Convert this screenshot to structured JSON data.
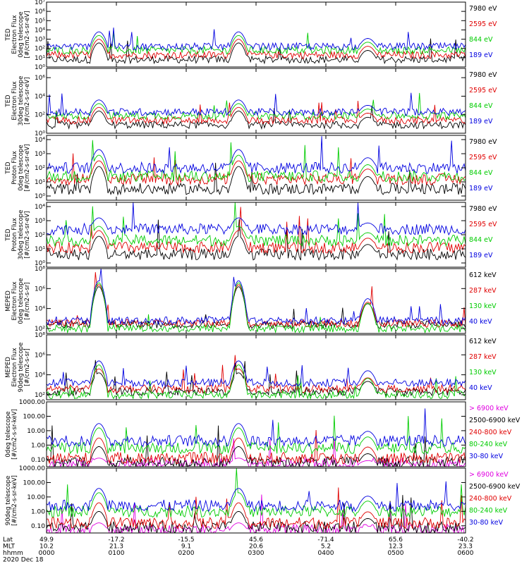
{
  "chart_data": {
    "type": "line",
    "time_range_hours": [
      0,
      6
    ],
    "footer": {
      "axis_labels": [
        "Lat",
        "MLT",
        "hhmm",
        "2020 Dec 18"
      ],
      "lat": [
        "49.9",
        "-17.2",
        "-15.5",
        "45.6",
        "-71.4",
        "65.6",
        "-40.2"
      ],
      "mlt": [
        "10.2",
        "21.3",
        "9.1",
        "20.6",
        "5.2",
        "12.3",
        "23.3"
      ],
      "hhmm": [
        "0000",
        "0100",
        "0200",
        "0300",
        "0400",
        "0500",
        "0600"
      ]
    },
    "pass_centers_hours": [
      0.75,
      2.75,
      4.6
    ],
    "panels": [
      {
        "ylabel": [
          "TED",
          "Electron Flux",
          "0deg telescope",
          "[#/cm2-s-sr-eV]"
        ],
        "scale": "log",
        "ylim_exp": [
          0,
          7
        ],
        "tick_labels": [
          "10⁰",
          "10¹",
          "10²",
          "10³",
          "10⁴",
          "10⁵",
          "10⁶",
          "10⁷"
        ],
        "tick_exps": [
          0,
          1,
          2,
          3,
          4,
          5,
          6,
          7
        ],
        "legend": [
          {
            "label": "7980 eV",
            "color": "#000000"
          },
          {
            "label": "2595 eV",
            "color": "#e00000"
          },
          {
            "label": "844 eV",
            "color": "#00cc00"
          },
          {
            "label": "189 eV",
            "color": "#0000e0"
          }
        ],
        "series_levels_exp": [
          0.8,
          1.3,
          1.8,
          2.2
        ],
        "peak_levels_exp": [
          2.6,
          3.0,
          3.4,
          3.8
        ]
      },
      {
        "ylabel": [
          "TED",
          "Electron Flux",
          "30deg telescope",
          "[#/cm2-s-sr-eV]"
        ],
        "scale": "log",
        "ylim_exp": [
          0,
          7
        ],
        "tick_labels": [
          "10⁰",
          "10²",
          "10⁴",
          "10⁶"
        ],
        "tick_exps": [
          0,
          2,
          4,
          6
        ],
        "legend": [
          {
            "label": "7980 eV",
            "color": "#000000"
          },
          {
            "label": "2595 eV",
            "color": "#e00000"
          },
          {
            "label": "844 eV",
            "color": "#00cc00"
          },
          {
            "label": "189 eV",
            "color": "#0000e0"
          }
        ],
        "series_levels_exp": [
          0.9,
          1.4,
          1.9,
          2.3
        ],
        "peak_levels_exp": [
          2.4,
          2.8,
          3.2,
          3.6
        ]
      },
      {
        "ylabel": [
          "TED",
          "Proton Flux",
          "0deg telescope",
          "[#/cm2-s-sr-eV]"
        ],
        "scale": "log",
        "ylim_exp": [
          -0.3,
          4.3
        ],
        "tick_labels": [
          "10⁰",
          "10¹",
          "10²",
          "10³",
          "10⁴"
        ],
        "tick_exps": [
          0,
          1,
          2,
          3,
          4
        ],
        "legend": [
          {
            "label": "7980 eV",
            "color": "#000000"
          },
          {
            "label": "2595 eV",
            "color": "#e00000"
          },
          {
            "label": "844 eV",
            "color": "#00cc00"
          },
          {
            "label": "189 eV",
            "color": "#0000e0"
          }
        ],
        "series_levels_exp": [
          0.5,
          1.2,
          1.4,
          2.0
        ],
        "peak_levels_exp": [
          2.1,
          2.5,
          2.9,
          3.3
        ]
      },
      {
        "ylabel": [
          "TED",
          "Proton Flux",
          "30deg telescope",
          "[#/cm2-s-sr-eV]"
        ],
        "scale": "log",
        "ylim_exp": [
          -0.3,
          4.3
        ],
        "tick_labels": [
          "10⁰",
          "10¹",
          "10²",
          "10³",
          "10⁴"
        ],
        "tick_exps": [
          0,
          1,
          2,
          3,
          4
        ],
        "legend": [
          {
            "label": "7980 eV",
            "color": "#000000"
          },
          {
            "label": "2595 eV",
            "color": "#e00000"
          },
          {
            "label": "844 eV",
            "color": "#00cc00"
          },
          {
            "label": "189 eV",
            "color": "#0000e0"
          }
        ],
        "series_levels_exp": [
          0.6,
          1.1,
          1.6,
          2.4
        ],
        "peak_levels_exp": [
          1.9,
          2.3,
          2.6,
          3.2
        ]
      },
      {
        "ylabel": [
          "MEPED",
          "Electron Flux",
          "0deg telescope",
          "[#/cm2-s-sr]"
        ],
        "scale": "log",
        "ylim_exp": [
          1.5,
          8
        ],
        "tick_labels": [
          "10²",
          "10⁴",
          "10⁶",
          "10⁸"
        ],
        "tick_exps": [
          2,
          4,
          6,
          8
        ],
        "legend": [
          {
            "label": "612 keV",
            "color": "#000000"
          },
          {
            "label": "287 keV",
            "color": "#e00000"
          },
          {
            "label": "130 keV",
            "color": "#00cc00"
          },
          {
            "label": "40 keV",
            "color": "#0000e0"
          }
        ],
        "series_levels_exp": [
          2.4,
          2.5,
          2.0,
          2.8
        ],
        "peak_levels_exp": [
          6.2,
          6.4,
          6.6,
          6.8
        ]
      },
      {
        "ylabel": [
          "MEPED",
          "Electron Flux",
          "90deg telescope",
          "[#/cm2-s-sr]"
        ],
        "scale": "log",
        "ylim_exp": [
          1.5,
          8
        ],
        "tick_labels": [
          "10²",
          "10⁴",
          "10⁶",
          "10⁸"
        ],
        "tick_exps": [
          2,
          4,
          6,
          8
        ],
        "legend": [
          {
            "label": "612 keV",
            "color": "#000000"
          },
          {
            "label": "287 keV",
            "color": "#e00000"
          },
          {
            "label": "130 keV",
            "color": "#00cc00"
          },
          {
            "label": "40 keV",
            "color": "#0000e0"
          }
        ],
        "series_levels_exp": [
          2.3,
          2.6,
          2.0,
          3.2
        ],
        "peak_levels_exp": [
          4.2,
          4.6,
          5.0,
          5.4
        ]
      },
      {
        "ylabel": [
          "0deg telescope",
          "[#/cm2-s-sr-keV]"
        ],
        "scale": "log",
        "ylim_exp": [
          -1.5,
          3
        ],
        "tick_labels": [
          "0.10",
          "1.00",
          "10.00",
          "100.00",
          "1000.00"
        ],
        "tick_exps": [
          -1,
          0,
          1,
          2,
          3
        ],
        "legend": [
          {
            "label": "> 6900 keV",
            "color": "#e000e0"
          },
          {
            "label": "2500-6900 keV",
            "color": "#000000"
          },
          {
            "label": "240-800 keV",
            "color": "#e00000"
          },
          {
            "label": "80-240 keV",
            "color": "#00cc00"
          },
          {
            "label": "30-80 keV",
            "color": "#0000e0"
          }
        ],
        "series_levels_exp": [
          -1.3,
          -1.2,
          -0.9,
          -0.2,
          0.3
        ],
        "peak_levels_exp": [
          -0.9,
          -0.1,
          0.5,
          1.2,
          1.5
        ]
      },
      {
        "ylabel": [
          "90deg telescope",
          "[#/cm2-s-sr-keV]"
        ],
        "scale": "log",
        "ylim_exp": [
          -1.5,
          3
        ],
        "tick_labels": [
          "0.10",
          "1.00",
          "10.00",
          "100.00",
          "1000.00"
        ],
        "tick_exps": [
          -1,
          0,
          1,
          2,
          3
        ],
        "legend": [
          {
            "label": "> 6900 keV",
            "color": "#e000e0"
          },
          {
            "label": "2500-6900 keV",
            "color": "#000000"
          },
          {
            "label": "240-800 keV",
            "color": "#e00000"
          },
          {
            "label": "80-240 keV",
            "color": "#00cc00"
          },
          {
            "label": "30-80 keV",
            "color": "#0000e0"
          }
        ],
        "series_levels_exp": [
          -1.3,
          -1.1,
          -0.8,
          0.0,
          0.4
        ],
        "peak_levels_exp": [
          -0.8,
          0.0,
          0.6,
          1.3,
          1.6
        ]
      }
    ]
  }
}
